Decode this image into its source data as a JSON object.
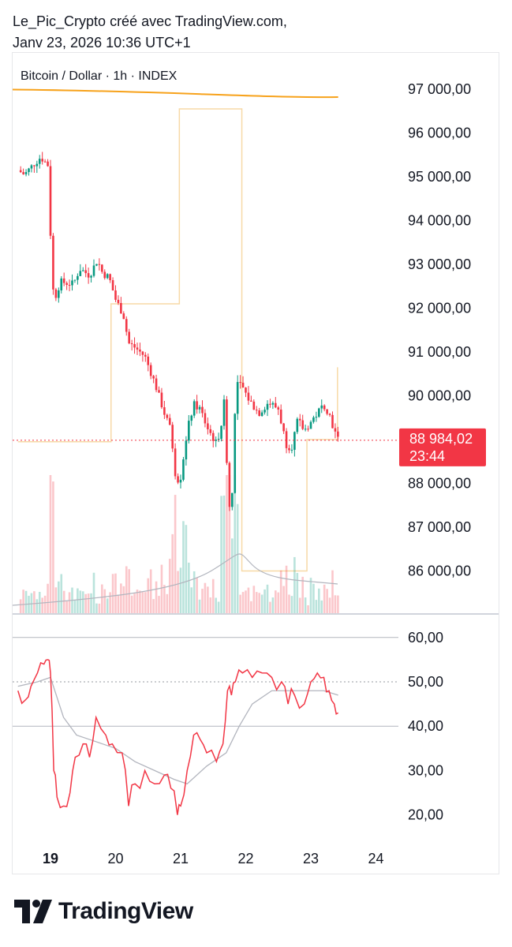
{
  "header": {
    "line1": "Le_Pic_Crypto créé avec TradingView.com,",
    "line2": "Janv 23, 2026 10:36 UTC+1"
  },
  "legend": {
    "symbol": "Bitcoin / Dollar · 1h · INDEX"
  },
  "price_axis": {
    "labels": [
      "97 000,00",
      "96 000,00",
      "95 000,00",
      "94 000,00",
      "93 000,00",
      "92 000,00",
      "91 000,00",
      "90 000,00",
      "88 000,00",
      "87 000,00",
      "86 000,00"
    ]
  },
  "last_price": {
    "value": "88 984,02",
    "countdown": "23:44",
    "color": "#f23645"
  },
  "rsi_axis": {
    "labels": [
      "60,00",
      "50,00",
      "40,00",
      "30,00",
      "20,00"
    ]
  },
  "time_axis": {
    "labels": [
      "19",
      "20",
      "21",
      "22",
      "23",
      "24"
    ]
  },
  "colors": {
    "up": "#089981",
    "down": "#f23645",
    "ma": "#f7a21b",
    "box": "#f7d9a6",
    "rsi": "#f23645",
    "rsi_ma": "#b2b5be"
  },
  "brand": {
    "name": "TradingView",
    "icon": "tradingview-logo-icon"
  },
  "chart_data": {
    "type": "candlestick",
    "symbol": "Bitcoin / Dollar",
    "interval": "1h",
    "ylim": [
      85500,
      97300
    ],
    "x_dates": [
      "19",
      "20",
      "21",
      "22",
      "23",
      "24"
    ],
    "last_price": 88984.02,
    "ma_line": {
      "start": 97000,
      "end": 96980
    },
    "range_box": [
      {
        "from": 18.5,
        "to": 19.93,
        "level": 88950
      },
      {
        "from": 19.93,
        "to": 20.98,
        "level": 92100
      },
      {
        "from": 20.98,
        "to": 21.94,
        "level": 96550
      },
      {
        "from": 21.94,
        "to": 22.94,
        "level": 86000
      },
      {
        "from": 22.94,
        "to": 23.41,
        "level": 89000
      }
    ],
    "close_path": [
      [
        18.5,
        95150
      ],
      [
        18.6,
        95050
      ],
      [
        18.75,
        95300
      ],
      [
        18.85,
        95450
      ],
      [
        18.97,
        95250
      ],
      [
        19.0,
        93700
      ],
      [
        19.05,
        92150
      ],
      [
        19.15,
        92600
      ],
      [
        19.35,
        92550
      ],
      [
        19.45,
        92900
      ],
      [
        19.6,
        92750
      ],
      [
        19.72,
        93100
      ],
      [
        19.8,
        92800
      ],
      [
        19.9,
        92700
      ],
      [
        20.0,
        92200
      ],
      [
        20.12,
        91850
      ],
      [
        20.2,
        91200
      ],
      [
        20.3,
        91100
      ],
      [
        20.45,
        90900
      ],
      [
        20.6,
        90300
      ],
      [
        20.75,
        89600
      ],
      [
        20.85,
        89200
      ],
      [
        20.93,
        88050
      ],
      [
        21.0,
        88150
      ],
      [
        21.1,
        89200
      ],
      [
        21.2,
        89800
      ],
      [
        21.3,
        89700
      ],
      [
        21.4,
        89300
      ],
      [
        21.55,
        88900
      ],
      [
        21.62,
        89300
      ],
      [
        21.67,
        89900
      ],
      [
        21.7,
        88800
      ],
      [
        21.74,
        87500
      ],
      [
        21.78,
        87300
      ],
      [
        21.82,
        89200
      ],
      [
        21.86,
        90300
      ],
      [
        21.95,
        90200
      ],
      [
        22.05,
        89900
      ],
      [
        22.2,
        89600
      ],
      [
        22.35,
        89850
      ],
      [
        22.5,
        89700
      ],
      [
        22.62,
        88900
      ],
      [
        22.7,
        88800
      ],
      [
        22.8,
        89450
      ],
      [
        22.9,
        89200
      ],
      [
        23.0,
        89400
      ],
      [
        23.1,
        89600
      ],
      [
        23.2,
        89800
      ],
      [
        23.28,
        89600
      ],
      [
        23.36,
        89200
      ],
      [
        23.42,
        88984
      ]
    ],
    "rsi": {
      "ylim": [
        16,
        63
      ],
      "overbought_line": 50,
      "points": [
        [
          18.5,
          48
        ],
        [
          18.62,
          46
        ],
        [
          18.7,
          49
        ],
        [
          18.8,
          52
        ],
        [
          18.9,
          54
        ],
        [
          18.96,
          55
        ],
        [
          19.0,
          52
        ],
        [
          19.05,
          30
        ],
        [
          19.1,
          24
        ],
        [
          19.2,
          22
        ],
        [
          19.3,
          25
        ],
        [
          19.38,
          33
        ],
        [
          19.5,
          36
        ],
        [
          19.6,
          33
        ],
        [
          19.7,
          42
        ],
        [
          19.85,
          38
        ],
        [
          19.95,
          36
        ],
        [
          20.1,
          34
        ],
        [
          20.2,
          22
        ],
        [
          20.3,
          27
        ],
        [
          20.45,
          30
        ],
        [
          20.6,
          27
        ],
        [
          20.75,
          29
        ],
        [
          20.85,
          26
        ],
        [
          20.95,
          20
        ],
        [
          21.0,
          22
        ],
        [
          21.1,
          30
        ],
        [
          21.2,
          38
        ],
        [
          21.3,
          37
        ],
        [
          21.4,
          34
        ],
        [
          21.55,
          32
        ],
        [
          21.65,
          36
        ],
        [
          21.72,
          48
        ],
        [
          21.78,
          47
        ],
        [
          21.84,
          50
        ],
        [
          21.95,
          52
        ],
        [
          22.1,
          51
        ],
        [
          22.25,
          52
        ],
        [
          22.4,
          51
        ],
        [
          22.55,
          50
        ],
        [
          22.65,
          45
        ],
        [
          22.75,
          47
        ],
        [
          22.9,
          45
        ],
        [
          23.0,
          50
        ],
        [
          23.1,
          52
        ],
        [
          23.2,
          51
        ],
        [
          23.28,
          48
        ],
        [
          23.36,
          45
        ],
        [
          23.42,
          43
        ]
      ],
      "ma": [
        [
          18.5,
          49
        ],
        [
          18.8,
          50
        ],
        [
          19.0,
          51
        ],
        [
          19.2,
          42
        ],
        [
          19.4,
          38
        ],
        [
          19.6,
          37
        ],
        [
          19.8,
          36
        ],
        [
          20.0,
          35
        ],
        [
          20.3,
          32
        ],
        [
          20.6,
          30
        ],
        [
          20.9,
          28
        ],
        [
          21.1,
          27
        ],
        [
          21.4,
          31
        ],
        [
          21.7,
          34
        ],
        [
          21.9,
          40
        ],
        [
          22.1,
          45
        ],
        [
          22.4,
          48
        ],
        [
          22.7,
          48
        ],
        [
          23.0,
          48
        ],
        [
          23.2,
          48
        ],
        [
          23.42,
          47
        ]
      ]
    }
  }
}
